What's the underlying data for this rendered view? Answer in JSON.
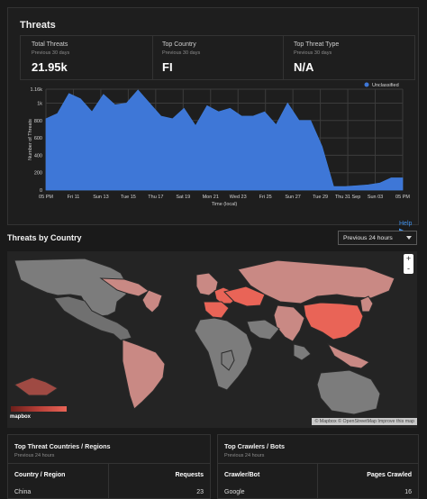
{
  "panel": {
    "title": "Threats",
    "stats": [
      {
        "label": "Total Threats",
        "sub": "Previous 30 days",
        "value": "21.95k"
      },
      {
        "label": "Top Country",
        "sub": "Previous 30 days",
        "value": "FI"
      },
      {
        "label": "Top Threat Type",
        "sub": "Previous 30 days",
        "value": "N/A"
      }
    ],
    "help": "Help ▶"
  },
  "chart_data": {
    "type": "area",
    "title": "",
    "xlabel": "Time (local)",
    "ylabel": "Number of Threats",
    "legend": {
      "position": "top-right",
      "items": [
        "Unclassified"
      ]
    },
    "y_ticks": [
      "0",
      "200",
      "400",
      "600",
      "800",
      "1k",
      "1.16k"
    ],
    "x_ticks": [
      "05 PM",
      "Fri 11",
      "Sun 13",
      "Tue 15",
      "Thu 17",
      "Sat 19",
      "Mon 21",
      "Wed 23",
      "Fri 25",
      "Sun 27",
      "Tue 29",
      "Thu 31 Sep",
      "Sun 03",
      "05 PM"
    ],
    "ylim": [
      0,
      1160
    ],
    "series": [
      {
        "name": "Unclassified",
        "color": "#3e77d7",
        "values": [
          820,
          880,
          1110,
          1050,
          900,
          1100,
          980,
          1000,
          1150,
          1000,
          850,
          820,
          940,
          740,
          970,
          900,
          940,
          850,
          850,
          900,
          750,
          1000,
          800,
          800,
          500,
          40,
          40,
          50,
          60,
          80,
          140,
          140
        ]
      }
    ]
  },
  "countries_section": {
    "title": "Threats by Country",
    "dropdown": "Previous 24 hours",
    "zoom_in": "+",
    "zoom_out": "-",
    "brand": "mapbox",
    "attribution": "© Mapbox © OpenStreetMap Improve this map"
  },
  "tables": {
    "left": {
      "title": "Top Threat Countries / Regions",
      "sub": "Previous 24 hours",
      "col1": "Country / Region",
      "col2": "Requests",
      "row1": {
        "name": "China",
        "value": "23"
      }
    },
    "right": {
      "title": "Top Crawlers / Bots",
      "sub": "Previous 24 hours",
      "col1": "Crawler/Bot",
      "col2": "Pages Crawled",
      "row1": {
        "name": "Google",
        "value": "16"
      }
    }
  },
  "colors": {
    "accent": "#3f8fe8",
    "series": "#3e77d7",
    "map_high": "#e96457",
    "map_mid": "#c98984",
    "map_low": "#7a7a7a"
  }
}
